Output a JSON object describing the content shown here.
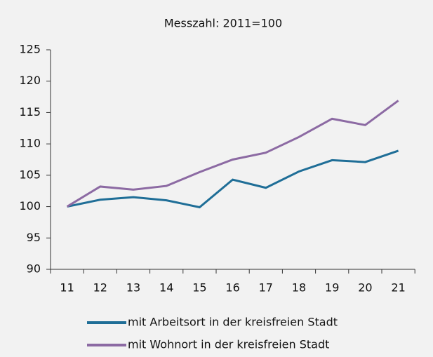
{
  "chart_data": {
    "type": "line",
    "title": "Messzahl: 2011=100",
    "categories": [
      "11",
      "12",
      "13",
      "14",
      "15",
      "16",
      "17",
      "18",
      "19",
      "20",
      "21"
    ],
    "series": [
      {
        "name": "mit Arbeitsort in der kreisfreien Stadt",
        "color": "#1f6e97",
        "values": [
          100,
          101.1,
          101.5,
          101.0,
          99.9,
          104.3,
          103.0,
          105.6,
          107.4,
          107.1,
          108.9
        ]
      },
      {
        "name": "mit Wohnort in der kreisfreien Stadt",
        "color": "#8c6aa3",
        "values": [
          100,
          103.2,
          102.7,
          103.3,
          105.5,
          107.5,
          108.6,
          111.1,
          114.0,
          113.0,
          116.9
        ]
      }
    ],
    "ylim": [
      90,
      125
    ],
    "yticks": [
      90,
      95,
      100,
      105,
      110,
      115,
      120,
      125
    ],
    "legend": "bottom"
  }
}
